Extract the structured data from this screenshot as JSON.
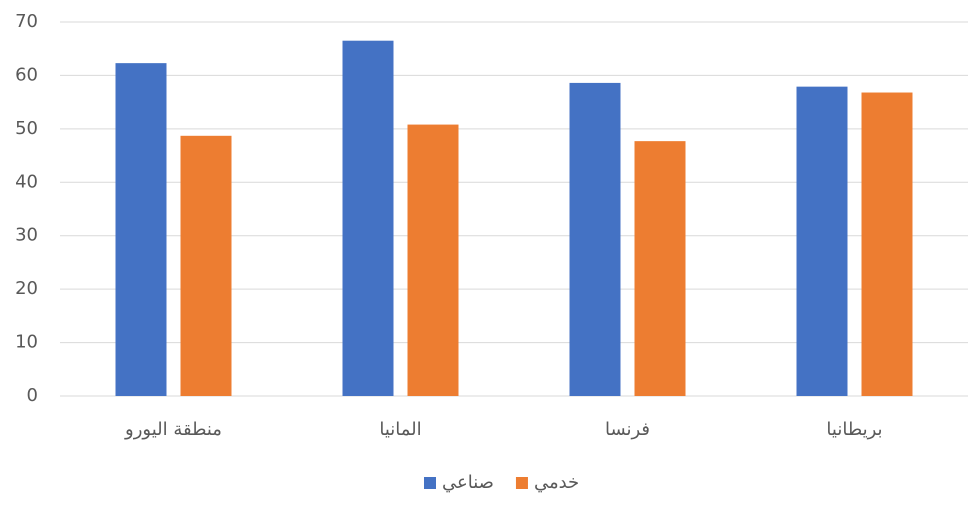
{
  "chart_data": {
    "type": "bar",
    "categories": [
      "منطقة اليورو",
      "المانيا",
      "فرنسا",
      "بريطانيا"
    ],
    "series": [
      {
        "name": "صناعي",
        "color": "#4472c4",
        "values": [
          62.3,
          66.5,
          58.6,
          57.9
        ]
      },
      {
        "name": "خدمي",
        "color": "#ed7d31",
        "values": [
          48.7,
          50.8,
          47.7,
          56.8
        ]
      }
    ],
    "ylim": [
      0,
      70
    ],
    "yticks": [
      0,
      10,
      20,
      30,
      40,
      50,
      60,
      70
    ],
    "grid": true
  }
}
